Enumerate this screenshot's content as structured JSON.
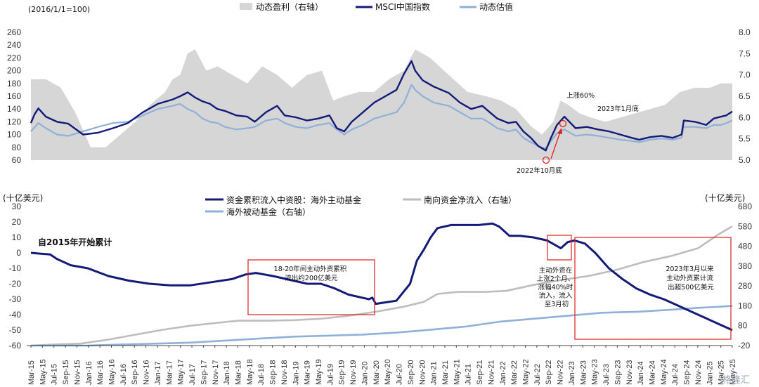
{
  "watermark": "格隆汇",
  "colors": {
    "navy": "#141a78",
    "lightblue": "#8fb0d8",
    "gray_fill": "#d6d6d6",
    "gray_line": "#bdbdbd",
    "red": "#e02020"
  },
  "chart_data": [
    {
      "type": "line",
      "panel": "top",
      "y_left_label": "(2016/1/1=100)",
      "y_left_ticks": [
        "260",
        "240",
        "220",
        "200",
        "180",
        "160",
        "140",
        "120",
        "100",
        "80",
        "60"
      ],
      "y_left_lim": [
        60,
        260
      ],
      "y_right_ticks": [
        "8.0",
        "7.5",
        "7.0",
        "6.5",
        "6.0",
        "5.5",
        "5.0"
      ],
      "y_right_lim": [
        5.0,
        8.0
      ],
      "legend": [
        "动态盈利（右轴）",
        "MSCI中国指数",
        "动态估值"
      ],
      "x_range": [
        "2016-01",
        "2025-05"
      ],
      "series": [
        {
          "name": "MSCI中国指数",
          "axis": "left",
          "color": "#141a78",
          "t": [
            2016.0,
            2016.05,
            2016.1,
            2016.2,
            2016.35,
            2016.5,
            2016.7,
            2016.9,
            2017.1,
            2017.3,
            2017.5,
            2017.7,
            2017.9,
            2018.0,
            2018.1,
            2018.2,
            2018.3,
            2018.4,
            2018.5,
            2018.6,
            2018.75,
            2018.9,
            2019.0,
            2019.15,
            2019.3,
            2019.4,
            2019.55,
            2019.7,
            2019.85,
            2020.0,
            2020.1,
            2020.2,
            2020.3,
            2020.45,
            2020.6,
            2020.75,
            2020.9,
            2021.0,
            2021.1,
            2021.15,
            2021.25,
            2021.4,
            2021.6,
            2021.75,
            2021.9,
            2022.05,
            2022.15,
            2022.25,
            2022.4,
            2022.5,
            2022.6,
            2022.7,
            2022.8,
            2022.9,
            2022.97,
            2023.05,
            2023.15,
            2023.3,
            2023.45,
            2023.6,
            2023.75,
            2023.9,
            2024.05,
            2024.15,
            2024.3,
            2024.45,
            2024.6,
            2024.72,
            2024.75,
            2024.9,
            2025.05,
            2025.15,
            2025.25,
            2025.32,
            2025.4
          ],
          "v": [
            118,
            132,
            141,
            128,
            120,
            117,
            100,
            103,
            110,
            118,
            135,
            148,
            155,
            160,
            166,
            158,
            152,
            148,
            140,
            137,
            130,
            128,
            120,
            135,
            145,
            130,
            127,
            122,
            125,
            130,
            110,
            105,
            120,
            135,
            150,
            160,
            170,
            195,
            215,
            200,
            185,
            175,
            165,
            150,
            140,
            145,
            135,
            125,
            118,
            120,
            105,
            95,
            82,
            75,
            95,
            115,
            128,
            110,
            112,
            108,
            105,
            100,
            95,
            92,
            96,
            98,
            95,
            100,
            122,
            120,
            115,
            125,
            128,
            130,
            136
          ]
        },
        {
          "name": "动态估值",
          "axis": "left",
          "color": "#8fb0d8",
          "t": [
            2016.0,
            2016.1,
            2016.2,
            2016.35,
            2016.5,
            2016.7,
            2016.9,
            2017.1,
            2017.3,
            2017.5,
            2017.7,
            2017.9,
            2018.0,
            2018.1,
            2018.2,
            2018.3,
            2018.4,
            2018.5,
            2018.6,
            2018.75,
            2018.9,
            2019.0,
            2019.15,
            2019.3,
            2019.4,
            2019.55,
            2019.7,
            2019.85,
            2020.0,
            2020.1,
            2020.2,
            2020.3,
            2020.45,
            2020.6,
            2020.75,
            2020.9,
            2021.0,
            2021.1,
            2021.15,
            2021.25,
            2021.4,
            2021.6,
            2021.75,
            2021.9,
            2022.05,
            2022.15,
            2022.25,
            2022.4,
            2022.5,
            2022.6,
            2022.7,
            2022.8,
            2022.9,
            2022.97,
            2023.05,
            2023.15,
            2023.3,
            2023.45,
            2023.6,
            2023.75,
            2023.9,
            2024.05,
            2024.15,
            2024.3,
            2024.45,
            2024.6,
            2024.72,
            2024.75,
            2024.9,
            2025.05,
            2025.15,
            2025.25,
            2025.32,
            2025.4
          ],
          "v": [
            105,
            118,
            110,
            100,
            98,
            105,
            112,
            118,
            120,
            130,
            140,
            145,
            148,
            140,
            135,
            125,
            120,
            118,
            112,
            108,
            110,
            112,
            122,
            125,
            118,
            112,
            110,
            115,
            118,
            108,
            100,
            108,
            115,
            125,
            130,
            135,
            150,
            178,
            170,
            160,
            150,
            145,
            135,
            125,
            125,
            118,
            110,
            105,
            108,
            95,
            88,
            82,
            78,
            90,
            102,
            108,
            98,
            100,
            98,
            95,
            92,
            90,
            88,
            92,
            94,
            92,
            95,
            112,
            112,
            110,
            115,
            115,
            118,
            122
          ]
        },
        {
          "name": "动态盈利（右轴）",
          "axis": "right",
          "color": "#d6d6d6",
          "kind": "area",
          "t": [
            2016.0,
            2016.2,
            2016.4,
            2016.6,
            2016.8,
            2017.0,
            2017.2,
            2017.4,
            2017.6,
            2017.8,
            2017.9,
            2018.0,
            2018.1,
            2018.2,
            2018.35,
            2018.5,
            2018.7,
            2018.9,
            2019.1,
            2019.3,
            2019.5,
            2019.7,
            2019.9,
            2020.05,
            2020.2,
            2020.4,
            2020.6,
            2020.8,
            2021.0,
            2021.15,
            2021.35,
            2021.6,
            2021.85,
            2022.1,
            2022.3,
            2022.5,
            2022.7,
            2022.85,
            2023.0,
            2023.1,
            2023.2,
            2023.35,
            2023.5,
            2023.7,
            2023.9,
            2024.1,
            2024.3,
            2024.5,
            2024.7,
            2024.9,
            2025.1,
            2025.25,
            2025.4
          ],
          "v": [
            6.9,
            6.9,
            6.7,
            6.1,
            5.3,
            5.3,
            5.6,
            5.9,
            6.3,
            6.6,
            6.9,
            7.0,
            7.5,
            7.6,
            7.1,
            7.2,
            7.0,
            6.8,
            7.2,
            7.0,
            6.7,
            7.0,
            7.1,
            6.4,
            6.5,
            6.6,
            6.6,
            6.9,
            7.1,
            7.6,
            7.4,
            7.0,
            6.6,
            6.5,
            6.4,
            6.2,
            5.8,
            5.6,
            5.9,
            6.4,
            6.3,
            6.1,
            6.0,
            5.9,
            6.0,
            6.1,
            6.2,
            6.3,
            6.6,
            6.7,
            6.7,
            6.8,
            6.8
          ]
        }
      ],
      "annotations": [
        {
          "text": "上涨60%"
        },
        {
          "text": "2023年1月底"
        },
        {
          "text": "2022年10月底"
        }
      ]
    },
    {
      "type": "line",
      "panel": "bottom",
      "y_left_label": "(十亿美元)",
      "y_right_label": "(十亿美元)",
      "note": "自2015年开始累计",
      "y_left_ticks": [
        "30",
        "20",
        "10",
        "0",
        "-10",
        "-20",
        "-30",
        "-40",
        "-50",
        "-60"
      ],
      "y_left_lim": [
        -60,
        30
      ],
      "y_right_ticks": [
        "680",
        "580",
        "480",
        "380",
        "280",
        "180",
        "80",
        "-20"
      ],
      "y_right_lim": [
        -20,
        680
      ],
      "legend": [
        "资金累积流入中资股：海外主动基金",
        "南向资金净流入（右轴）",
        "海外被动基金（右轴）"
      ],
      "x_ticks": [
        "Mar-15",
        "May-15",
        "Jul-15",
        "Sep-15",
        "Nov-15",
        "Jan-16",
        "Mar-16",
        "May-16",
        "Jul-16",
        "Sep-16",
        "Nov-16",
        "Jan-17",
        "Mar-17",
        "May-17",
        "Jul-17",
        "Sep-17",
        "Nov-17",
        "Jan-18",
        "Mar-18",
        "May-18",
        "Jul-18",
        "Sep-18",
        "Nov-18",
        "Jan-19",
        "Mar-19",
        "May-19",
        "Jul-19",
        "Sep-19",
        "Nov-19",
        "Jan-20",
        "Mar-20",
        "May-20",
        "Jul-20",
        "Sep-20",
        "Nov-20",
        "Jan-21",
        "Mar-21",
        "May-21",
        "Jul-21",
        "Sep-21",
        "Nov-21",
        "Jan-22",
        "Mar-22",
        "May-22",
        "Jul-22",
        "Sep-22",
        "Nov-22",
        "Jan-23",
        "Mar-23",
        "May-23",
        "Jul-23",
        "Sep-23",
        "Nov-23",
        "Jan-24",
        "Mar-24",
        "May-24",
        "Jul-24",
        "Sep-24",
        "Nov-24",
        "Jan-25",
        "Mar-25",
        "May-25"
      ],
      "series": [
        {
          "name": "资金累积流入中资股：海外主动基金",
          "axis": "left",
          "color": "#141a78",
          "t": [
            2015.17,
            2015.3,
            2015.45,
            2015.55,
            2015.75,
            2016.0,
            2016.3,
            2016.6,
            2016.9,
            2017.2,
            2017.5,
            2017.8,
            2018.1,
            2018.3,
            2018.45,
            2018.7,
            2019.0,
            2019.2,
            2019.4,
            2019.6,
            2019.8,
            2020.0,
            2020.1,
            2020.15,
            2020.2,
            2020.35,
            2020.5,
            2020.7,
            2020.8,
            2020.9,
            2021.0,
            2021.1,
            2021.3,
            2021.5,
            2021.7,
            2021.9,
            2022.0,
            2022.05,
            2022.15,
            2022.3,
            2022.5,
            2022.7,
            2022.9,
            2023.0,
            2023.1,
            2023.25,
            2023.4,
            2023.6,
            2023.8,
            2024.0,
            2024.2,
            2024.4,
            2024.6,
            2024.8,
            2025.0,
            2025.2,
            2025.4
          ],
          "v": [
            0,
            -0.5,
            -1,
            -4,
            -8,
            -10,
            -15,
            -18,
            -20,
            -21,
            -21,
            -19,
            -17,
            -14,
            -13,
            -15,
            -18,
            -20,
            -20,
            -23,
            -27,
            -29,
            -30,
            -29,
            -33,
            -32,
            -31,
            -20,
            -5,
            2,
            10,
            16,
            18,
            18,
            18,
            19,
            17,
            15,
            11,
            11,
            10,
            8,
            3,
            7,
            8,
            6,
            0,
            -10,
            -17,
            -23,
            -27,
            -30,
            -34,
            -38,
            -42,
            -46,
            -50
          ]
        },
        {
          "name": "南向资金净流入（右轴）",
          "axis": "right",
          "color": "#bdbdbd",
          "t": [
            2015.17,
            2015.5,
            2015.9,
            2016.3,
            2016.7,
            2017.1,
            2017.5,
            2017.9,
            2018.2,
            2018.6,
            2019.0,
            2019.4,
            2019.8,
            2020.2,
            2020.6,
            2020.9,
            2021.1,
            2021.4,
            2021.8,
            2022.1,
            2022.5,
            2022.9,
            2023.3,
            2023.7,
            2024.1,
            2024.5,
            2024.9,
            2025.2,
            2025.4
          ],
          "v": [
            -20,
            -15,
            -10,
            10,
            35,
            60,
            80,
            95,
            105,
            105,
            108,
            115,
            130,
            150,
            175,
            200,
            240,
            250,
            250,
            255,
            285,
            310,
            330,
            360,
            400,
            430,
            470,
            540,
            580
          ]
        },
        {
          "name": "海外被动基金（右轴）",
          "axis": "right",
          "color": "#8fb0d8",
          "t": [
            2015.17,
            2015.5,
            2016.0,
            2016.5,
            2017.0,
            2017.5,
            2018.0,
            2018.5,
            2019.0,
            2019.5,
            2020.0,
            2020.5,
            2021.0,
            2021.5,
            2022.0,
            2022.5,
            2023.0,
            2023.5,
            2024.0,
            2024.5,
            2024.9,
            2025.2,
            2025.4
          ],
          "v": [
            -20,
            -20,
            -20,
            -15,
            -10,
            -5,
            5,
            15,
            25,
            30,
            35,
            45,
            60,
            75,
            100,
            115,
            130,
            145,
            150,
            160,
            170,
            175,
            180
          ]
        }
      ],
      "annotations": [
        {
          "text": [
            "18-20年间主动外资累积",
            "流出约200亿美元"
          ]
        },
        {
          "text": [
            "主动外资在",
            "上涨2个月、",
            "涨幅40%时",
            "流入，流入",
            "至3月初"
          ]
        },
        {
          "text": [
            "2023年3月以来",
            "主动外资累计流",
            "出超500亿美元"
          ]
        }
      ]
    }
  ]
}
